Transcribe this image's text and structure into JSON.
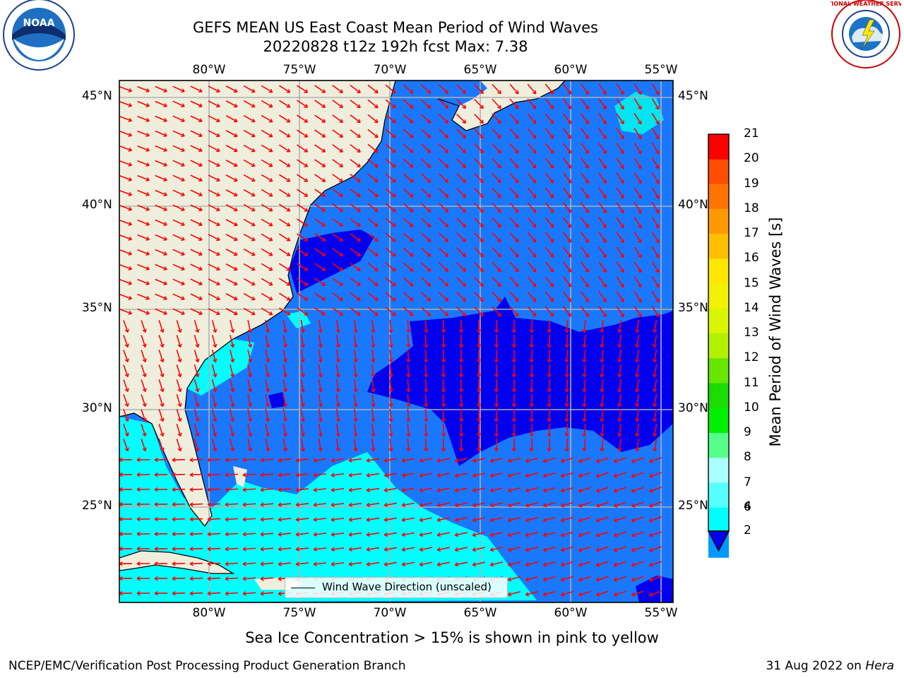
{
  "title": {
    "line1": "GEFS MEAN US East Coast Mean Period of Wind Waves",
    "line2": "20220828 t12z 192h fcst   Max: 7.38"
  },
  "map": {
    "lon_labels_top": [
      "80°W",
      "75°W",
      "70°W",
      "65°W",
      "60°W",
      "55°W"
    ],
    "lon_labels_bottom": [
      "80°W",
      "75°W",
      "70°W",
      "65°W",
      "60°W",
      "55°W"
    ],
    "lat_labels_left": [
      "45°N",
      "40°N",
      "35°N",
      "30°N",
      "25°N"
    ],
    "lat_labels_right": [
      "45°N",
      "40°N",
      "35°N",
      "30°N",
      "25°N"
    ],
    "land_color": "#efeedc",
    "gridline_color": "#b0b0b0",
    "arrow_color": "#ff0000",
    "legend_label": "Wind Wave Direction (unscaled)"
  },
  "colorbar": {
    "title": "Mean Period of Wind Waves [s]",
    "ticks": [
      "21",
      "20",
      "19",
      "18",
      "17",
      "16",
      "15",
      "14",
      "13",
      "12",
      "11",
      "10",
      "9",
      "8",
      "7",
      "6",
      "4",
      "2"
    ],
    "colors": [
      "#ff0000",
      "#ff2600",
      "#ff4d00",
      "#ff7300",
      "#ff9900",
      "#ffbf00",
      "#ffe600",
      "#f2f200",
      "#d9f500",
      "#b3f000",
      "#66e600",
      "#1adc00",
      "#00f000",
      "#55ff88",
      "#aaffff",
      "#55ffff",
      "#00ffff",
      "#0099ff"
    ],
    "extend_min_color": "#0000ee",
    "band_2_4": "#1a78ff",
    "band_4_6": "#00ffff"
  },
  "footer": {
    "ice_note": "Sea Ice Concentration > 15% is shown in pink to yellow",
    "left": "NCEP/EMC/Verification Post Processing Product Generation Branch",
    "right_date": "31 Aug 2022 on ",
    "right_host": "Hera"
  },
  "logos": {
    "left": "noaa-logo",
    "left_text": "NOAA",
    "right": "nws-logo",
    "right_text": "NATIONAL WEATHER SERVICE"
  }
}
